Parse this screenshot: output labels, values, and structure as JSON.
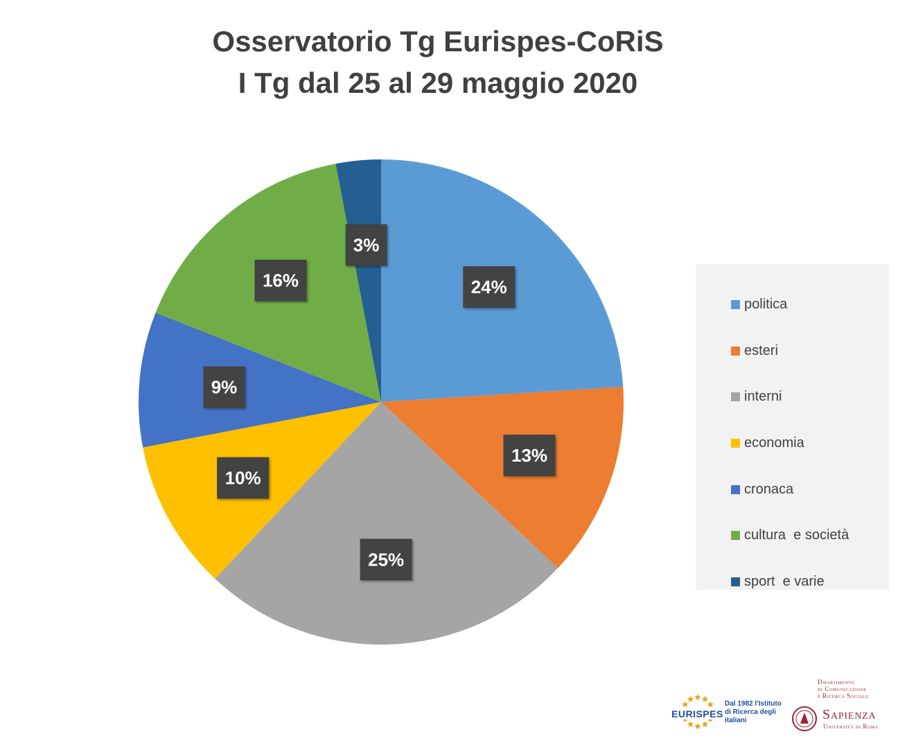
{
  "chart_data": {
    "type": "pie",
    "title": [
      "Osservatorio Tg Eurispes-CoRiS",
      "I Tg dal 25 al 29 maggio 2020"
    ],
    "legend_position": "right",
    "categories": [
      "politica",
      "esteri",
      "interni",
      "economia",
      "cronaca",
      "cultura  e società",
      "sport  e varie"
    ],
    "values": [
      24,
      13,
      25,
      10,
      9,
      16,
      3
    ],
    "labels": [
      "24%",
      "13%",
      "25%",
      "10%",
      "9%",
      "16%",
      "3%"
    ],
    "colors": [
      "#5b9bd5",
      "#ed7d31",
      "#a5a5a5",
      "#ffc000",
      "#4472c4",
      "#70ad47",
      "#255e91"
    ]
  },
  "logos": {
    "eurispes_name": "EURISPES",
    "eurispes_tagline": "Dal 1982 l'Istituto di Ricerca degli italiani",
    "dept_lines": [
      "Dipartimento",
      "di Comunicazione",
      "e Ricerca Sociale"
    ],
    "sapienza_name": "Sapienza",
    "sapienza_sub": "Università di Roma"
  }
}
